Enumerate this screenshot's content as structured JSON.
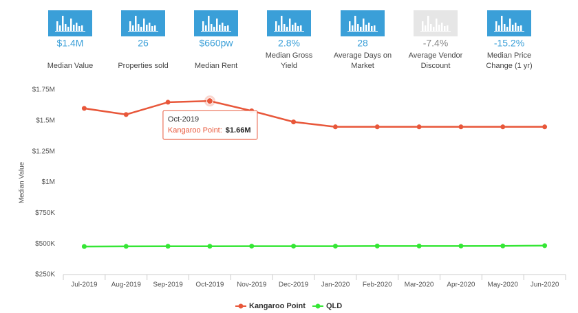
{
  "stats": [
    {
      "value": "$1.4M",
      "label": [
        "Median Value"
      ],
      "color": "#3a9fd8"
    },
    {
      "value": "26",
      "label": [
        "Properties sold"
      ],
      "color": "#3a9fd8"
    },
    {
      "value": "$660pw",
      "label": [
        "Median Rent"
      ],
      "color": "#3a9fd8"
    },
    {
      "value": "2.8%",
      "label": [
        "Median Gross",
        "Yield"
      ],
      "color": "#3a9fd8"
    },
    {
      "value": "28",
      "label": [
        "Average Days on",
        "Market"
      ],
      "color": "#3a9fd8"
    },
    {
      "value": "-7.4%",
      "label": [
        "Average Vendor",
        "Discount"
      ],
      "color": "#e6e6e6"
    },
    {
      "value": "-15.2%",
      "label": [
        "Median Price",
        "Change (1 yr)"
      ],
      "color": "#3a9fd8"
    }
  ],
  "chart_data": {
    "type": "line",
    "y_label": "Median Value",
    "categories": [
      "Jul-2019",
      "Aug-2019",
      "Sep-2019",
      "Oct-2019",
      "Nov-2019",
      "Dec-2019",
      "Jan-2020",
      "Feb-2020",
      "Mar-2020",
      "Apr-2020",
      "May-2020",
      "Jun-2020"
    ],
    "series": [
      {
        "name": "Kangaroo Point",
        "color": "#e8573a",
        "values": [
          1600000,
          1550000,
          1650000,
          1660000,
          1580000,
          1490000,
          1450000,
          1450000,
          1450000,
          1450000,
          1450000,
          1450000
        ]
      },
      {
        "name": "QLD",
        "color": "#35e635",
        "values": [
          478000,
          479000,
          480000,
          480000,
          481000,
          481000,
          481000,
          482000,
          482000,
          482000,
          483000,
          485000
        ]
      }
    ],
    "ylim": [
      250000,
      1750000
    ],
    "yticks": [
      {
        "value": 250000,
        "label": "$250K"
      },
      {
        "value": 500000,
        "label": "$500K"
      },
      {
        "value": 750000,
        "label": "$750K"
      },
      {
        "value": 1000000,
        "label": "$1M"
      },
      {
        "value": 1250000,
        "label": "$1.25M"
      },
      {
        "value": 1500000,
        "label": "$1.5M"
      },
      {
        "value": 1750000,
        "label": "$1.75M"
      }
    ],
    "grid": false,
    "tooltip": {
      "title": "Oct-2019",
      "label": "Kangaroo Point:",
      "value_label": "$1.66M"
    }
  }
}
